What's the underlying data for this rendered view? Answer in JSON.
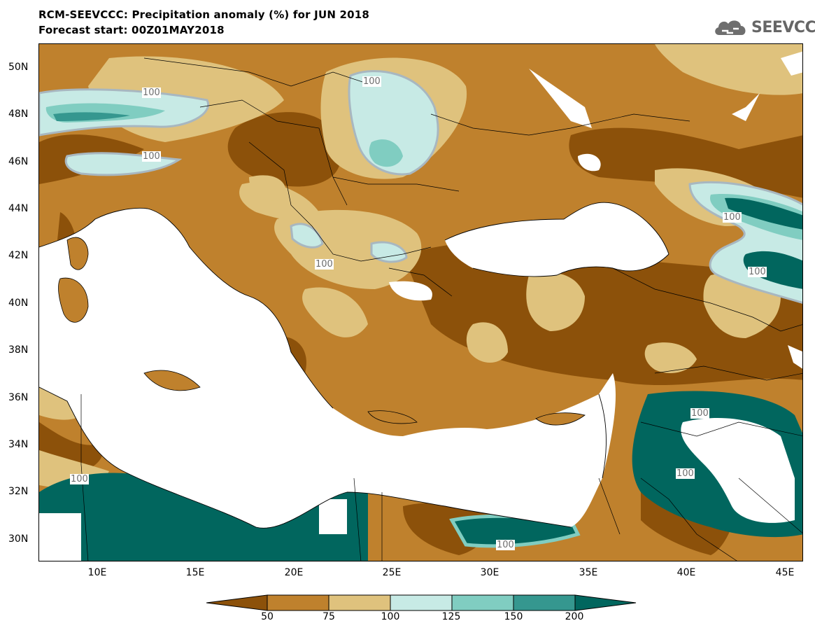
{
  "header": {
    "title_line1": "RCM-SEEVCCC: Precipitation anomaly (%) for JUN 2018",
    "title_line2": "Forecast start: 00Z01MAY2018"
  },
  "logo": {
    "text": "SEEVCCC",
    "icon": "cloud-icon",
    "color": "#666666"
  },
  "map": {
    "lon_range": [
      7,
      46
    ],
    "lat_range": [
      29,
      51
    ],
    "lat_ticks": [
      "50N",
      "48N",
      "46N",
      "44N",
      "42N",
      "40N",
      "38N",
      "36N",
      "34N",
      "32N",
      "30N"
    ],
    "lon_ticks": [
      "10E",
      "15E",
      "20E",
      "25E",
      "30E",
      "35E",
      "40E",
      "45E"
    ],
    "contour_labels": [
      "100",
      "100",
      "100",
      "100",
      "100",
      "100",
      "100",
      "100",
      "100",
      "100"
    ]
  },
  "colorbar": {
    "bins": [
      {
        "label": "<50",
        "color": "#8c510a"
      },
      {
        "label": "50-75",
        "color": "#bf812d"
      },
      {
        "label": "75-100",
        "color": "#dfc27d"
      },
      {
        "label": "100-125",
        "color": "#c7eae5"
      },
      {
        "label": "125-150",
        "color": "#80cdc1"
      },
      {
        "label": "150-200",
        "color": "#35978f"
      },
      {
        "label": ">200",
        "color": "#01665e"
      }
    ],
    "tick_labels": [
      "50",
      "75",
      "100",
      "125",
      "150",
      "200"
    ]
  }
}
